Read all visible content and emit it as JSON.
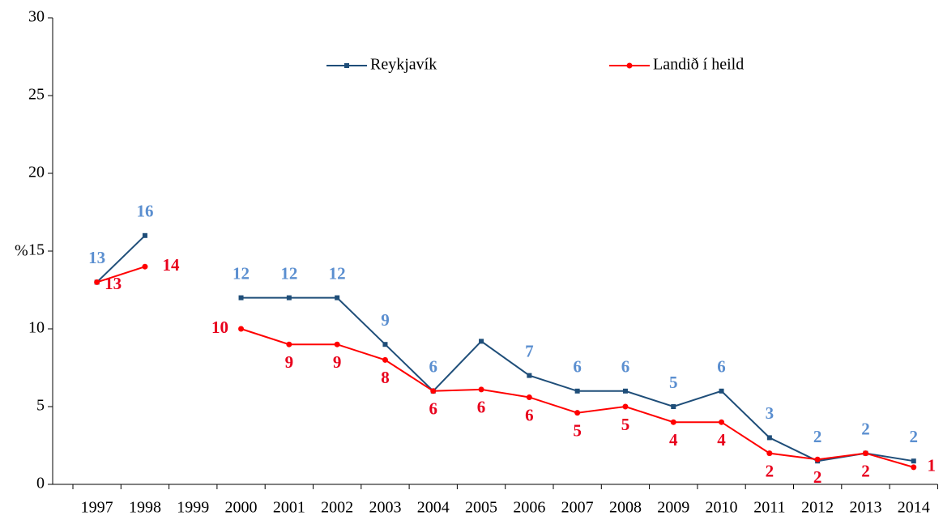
{
  "chart_data": {
    "type": "line",
    "y_label": "%",
    "categories": [
      "1997",
      "1998",
      "1999",
      "2000",
      "2001",
      "2002",
      "2003",
      "2004",
      "2005",
      "2006",
      "2007",
      "2008",
      "2009",
      "2010",
      "2011",
      "2012",
      "2013",
      "2014"
    ],
    "series": [
      {
        "name": "Reykjavík",
        "color": "#1f4e79",
        "label_color": "#5b8fd0",
        "values": [
          13,
          16,
          null,
          12,
          12,
          12,
          9,
          6,
          9.2,
          7,
          6,
          6,
          5,
          6,
          3,
          1.5,
          2,
          1.5
        ],
        "value_labels": [
          "13",
          "16",
          null,
          "12",
          "12",
          "12",
          "9",
          "6",
          null,
          "7",
          "6",
          "6",
          "5",
          "6",
          "3",
          "2",
          "2",
          "2"
        ]
      },
      {
        "name": "Landið í heild",
        "color": "#ff0000",
        "label_color": "#e8001c",
        "values": [
          13,
          14,
          null,
          10,
          9,
          9,
          8,
          6,
          6.1,
          5.6,
          4.6,
          5,
          4,
          4,
          2,
          1.6,
          2,
          1.1
        ],
        "value_labels": [
          "13",
          "14",
          null,
          "10",
          "9",
          "9",
          "8",
          "6",
          "6",
          "6",
          "5",
          "5",
          "4",
          "4",
          "2",
          "2",
          "2",
          "1"
        ]
      }
    ],
    "ylim": [
      0,
      30
    ],
    "yticks": [
      0,
      5,
      10,
      15,
      20,
      25,
      30
    ],
    "grid": false,
    "legend": "top"
  }
}
